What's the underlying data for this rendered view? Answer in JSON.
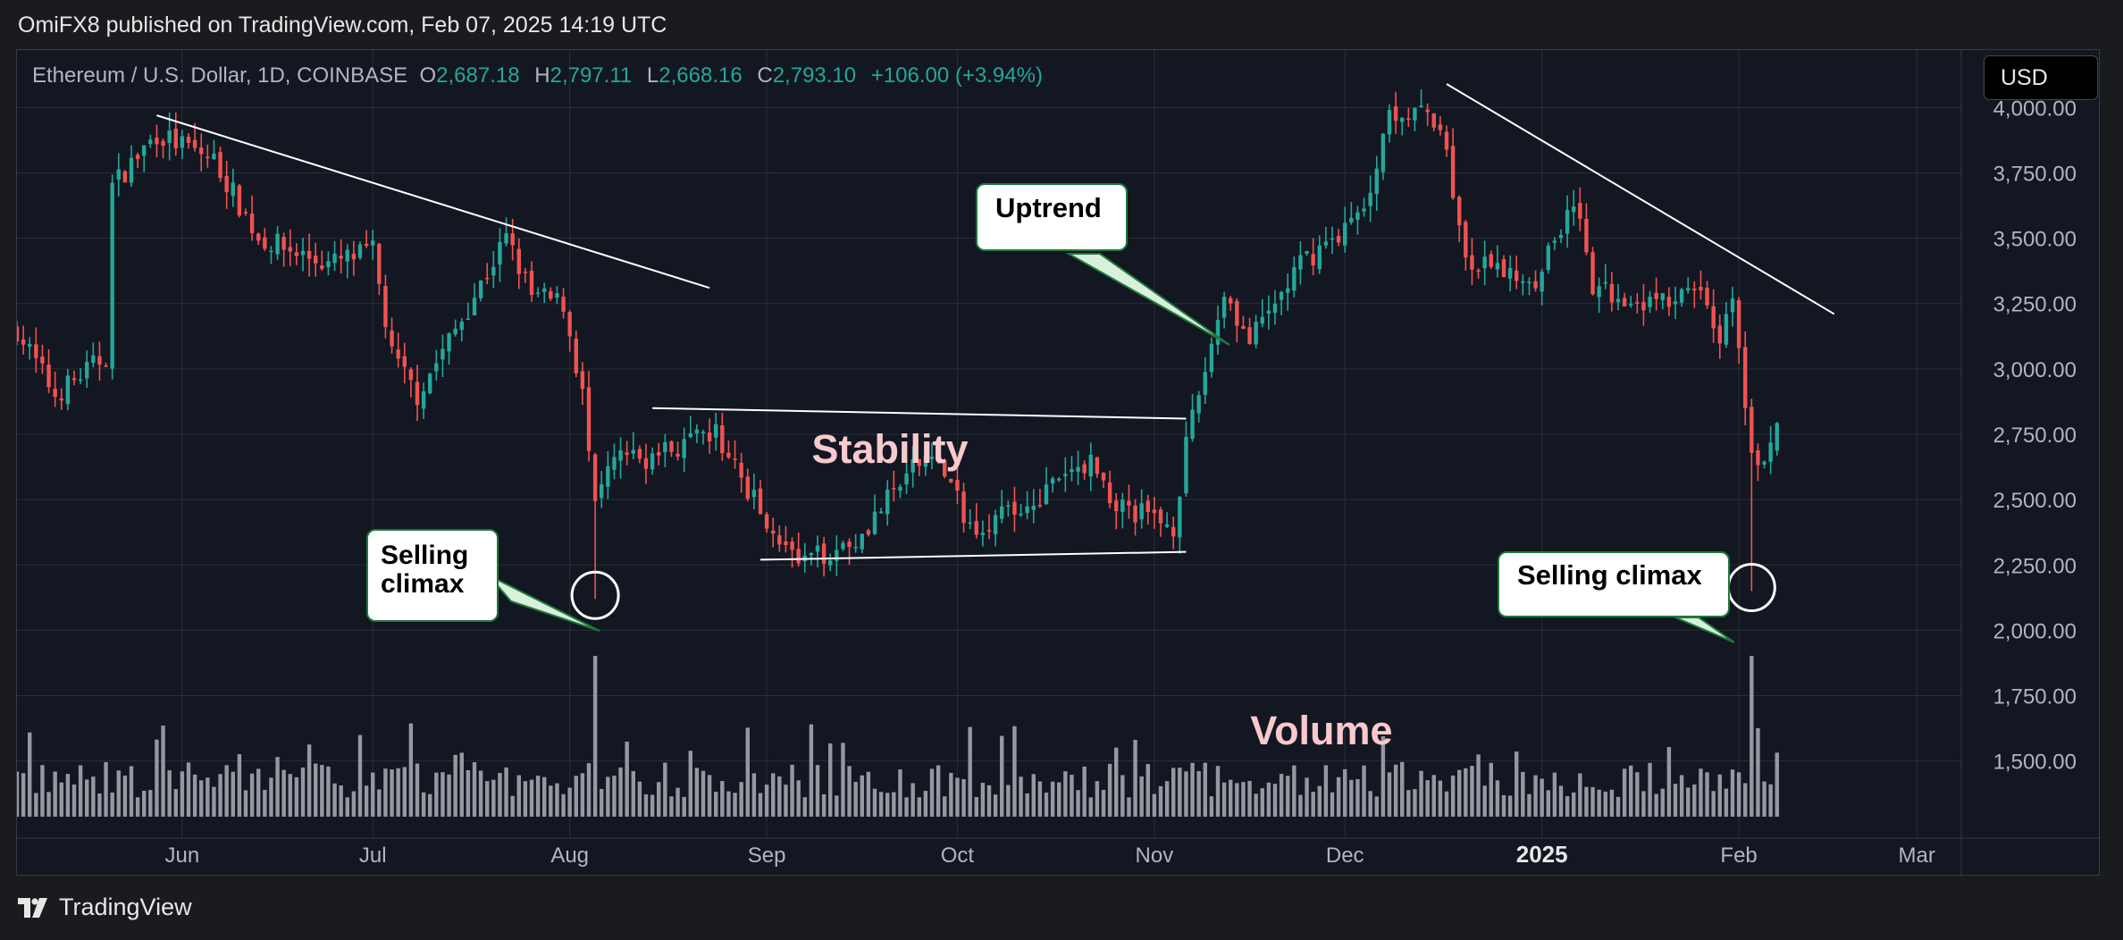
{
  "header": {
    "published": "OmiFX8 published on TradingView.com, Feb 07, 2025 14:19 UTC"
  },
  "symbol": {
    "name": "Ethereum / U.S. Dollar, 1D, COINBASE",
    "open_label": "O",
    "open": "2,687.18",
    "high_label": "H",
    "high": "2,797.11",
    "low_label": "L",
    "low": "2,668.16",
    "close_label": "C",
    "close": "2,793.10",
    "change": "+106.00 (+3.94%)"
  },
  "currency_button": {
    "label": "USD"
  },
  "footer": {
    "brand": "TradingView"
  },
  "annotations": {
    "stability": "Stability",
    "volume": "Volume",
    "uptrend": "Uptrend",
    "selling_climax_1": "Selling\nclimax",
    "selling_climax_2": "Selling climax"
  },
  "colors": {
    "up": "#26a69a",
    "down": "#ef5350",
    "background": "#131722",
    "volume": "#9598a1",
    "grid": "#2a2e39",
    "text_axis": "#b2b5be",
    "annotation_pink": "#f8c9cd",
    "callout_border": "#1f7a3a"
  },
  "chart_data": {
    "type": "candlestick",
    "title": "Ethereum / U.S. Dollar, 1D, COINBASE",
    "y_ticks": [
      "4,000.00",
      "3,750.00",
      "3,500.00",
      "3,250.00",
      "3,000.00",
      "2,750.00",
      "2,500.00",
      "2,250.00",
      "2,000.00",
      "1,750.00",
      "1,500.00"
    ],
    "y_tick_values": [
      4000,
      3750,
      3500,
      3250,
      3000,
      2750,
      2500,
      2250,
      2000,
      1750,
      1500
    ],
    "ylim": [
      1280,
      4220
    ],
    "x_ticks": [
      {
        "label": "Jun",
        "date": "2024-06-01"
      },
      {
        "label": "Jul",
        "date": "2024-07-01"
      },
      {
        "label": "Aug",
        "date": "2024-08-01"
      },
      {
        "label": "Sep",
        "date": "2024-09-01"
      },
      {
        "label": "Oct",
        "date": "2024-10-01"
      },
      {
        "label": "Nov",
        "date": "2024-11-01"
      },
      {
        "label": "Dec",
        "date": "2024-12-01"
      },
      {
        "label": "2025",
        "date": "2025-01-01",
        "bold": true
      },
      {
        "label": "Feb",
        "date": "2025-02-01"
      },
      {
        "label": "Mar",
        "date": "2025-03-01"
      }
    ],
    "xlim": [
      "2024-05-06",
      "2025-03-08"
    ],
    "grid": true,
    "key_points": [
      {
        "date": "2024-05-06",
        "price": 3150
      },
      {
        "date": "2024-05-12",
        "price": 2900
      },
      {
        "date": "2024-05-20",
        "price": 3050
      },
      {
        "date": "2024-05-21",
        "price": 3700
      },
      {
        "date": "2024-05-28",
        "price": 3900
      },
      {
        "date": "2024-06-06",
        "price": 3800
      },
      {
        "date": "2024-06-13",
        "price": 3500
      },
      {
        "date": "2024-06-24",
        "price": 3400
      },
      {
        "date": "2024-07-01",
        "price": 3450
      },
      {
        "date": "2024-07-04",
        "price": 3050
      },
      {
        "date": "2024-07-08",
        "price": 2900
      },
      {
        "date": "2024-07-14",
        "price": 3150
      },
      {
        "date": "2024-07-22",
        "price": 3500
      },
      {
        "date": "2024-07-26",
        "price": 3280
      },
      {
        "date": "2024-07-31",
        "price": 3250
      },
      {
        "date": "2024-08-03",
        "price": 2900
      },
      {
        "date": "2024-08-05",
        "price": 2450
      },
      {
        "date": "2024-08-08",
        "price": 2680
      },
      {
        "date": "2024-08-12",
        "price": 2650
      },
      {
        "date": "2024-08-24",
        "price": 2750
      },
      {
        "date": "2024-08-30",
        "price": 2500
      },
      {
        "date": "2024-09-06",
        "price": 2250
      },
      {
        "date": "2024-09-15",
        "price": 2350
      },
      {
        "date": "2024-09-27",
        "price": 2700
      },
      {
        "date": "2024-10-03",
        "price": 2400
      },
      {
        "date": "2024-10-10",
        "price": 2450
      },
      {
        "date": "2024-10-22",
        "price": 2650
      },
      {
        "date": "2024-10-26",
        "price": 2480
      },
      {
        "date": "2024-11-04",
        "price": 2400
      },
      {
        "date": "2024-11-06",
        "price": 2700
      },
      {
        "date": "2024-11-12",
        "price": 3300
      },
      {
        "date": "2024-11-16",
        "price": 3100
      },
      {
        "date": "2024-11-24",
        "price": 3400
      },
      {
        "date": "2024-12-04",
        "price": 3600
      },
      {
        "date": "2024-12-08",
        "price": 4000
      },
      {
        "date": "2024-12-16",
        "price": 3950
      },
      {
        "date": "2024-12-20",
        "price": 3400
      },
      {
        "date": "2024-12-31",
        "price": 3350
      },
      {
        "date": "2025-01-06",
        "price": 3650
      },
      {
        "date": "2025-01-09",
        "price": 3300
      },
      {
        "date": "2025-01-20",
        "price": 3250
      },
      {
        "date": "2025-01-26",
        "price": 3300
      },
      {
        "date": "2025-01-29",
        "price": 3100
      },
      {
        "date": "2025-01-31",
        "price": 3300
      },
      {
        "date": "2025-02-02",
        "price": 2850
      },
      {
        "date": "2025-02-03",
        "price": 2650
      },
      {
        "date": "2025-02-06",
        "price": 2690
      },
      {
        "date": "2025-02-07",
        "price": 2790
      }
    ],
    "last_candle": {
      "date": "2025-02-07",
      "open": 2687.18,
      "high": 2797.11,
      "low": 2668.16,
      "close": 2793.1
    },
    "climax_lows": [
      {
        "date": "2024-08-05",
        "low": 2120
      },
      {
        "date": "2025-02-03",
        "low": 2150
      }
    ],
    "volume_spikes": [
      {
        "date": "2024-08-05",
        "relative": 1.0
      },
      {
        "date": "2025-02-03",
        "relative": 1.0
      },
      {
        "date": "2025-02-04",
        "relative": 0.55
      }
    ],
    "trendlines": [
      {
        "from": {
          "date": "2024-05-28",
          "price": 3970
        },
        "to": {
          "date": "2024-08-23",
          "price": 3310
        }
      },
      {
        "from": {
          "date": "2024-08-14",
          "price": 2850
        },
        "to": {
          "date": "2024-11-06",
          "price": 2810
        }
      },
      {
        "from": {
          "date": "2024-08-31",
          "price": 2270
        },
        "to": {
          "date": "2024-11-06",
          "price": 2300
        }
      },
      {
        "from": {
          "date": "2024-12-17",
          "price": 4090
        },
        "to": {
          "date": "2025-02-16",
          "price": 3210
        }
      }
    ],
    "volume_labels_visible": false
  }
}
